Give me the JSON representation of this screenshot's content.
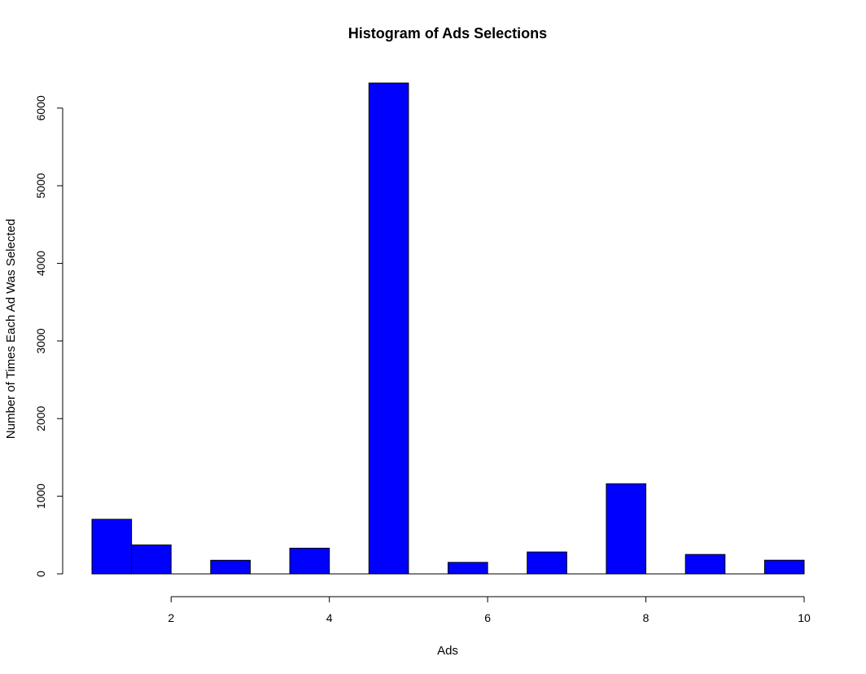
{
  "chart_data": {
    "type": "bar",
    "title": "Histogram of Ads Selections",
    "xlabel": "Ads",
    "ylabel": "Number of Times Each Ad Was Selected",
    "bar_color": "#0000ff",
    "bins": [
      {
        "x0": 1.0,
        "x1": 1.5,
        "value": 703
      },
      {
        "x0": 1.5,
        "x1": 2.0,
        "value": 373
      },
      {
        "x0": 2.0,
        "x1": 2.5,
        "value": 0
      },
      {
        "x0": 2.5,
        "x1": 3.0,
        "value": 175
      },
      {
        "x0": 3.0,
        "x1": 3.5,
        "value": 0
      },
      {
        "x0": 3.5,
        "x1": 4.0,
        "value": 331
      },
      {
        "x0": 4.0,
        "x1": 4.5,
        "value": 0
      },
      {
        "x0": 4.5,
        "x1": 5.0,
        "value": 6323
      },
      {
        "x0": 5.0,
        "x1": 5.5,
        "value": 0
      },
      {
        "x0": 5.5,
        "x1": 6.0,
        "value": 148
      },
      {
        "x0": 6.0,
        "x1": 6.5,
        "value": 0
      },
      {
        "x0": 6.5,
        "x1": 7.0,
        "value": 282
      },
      {
        "x0": 7.0,
        "x1": 7.5,
        "value": 0
      },
      {
        "x0": 7.5,
        "x1": 8.0,
        "value": 1161
      },
      {
        "x0": 8.0,
        "x1": 8.5,
        "value": 0
      },
      {
        "x0": 8.5,
        "x1": 9.0,
        "value": 250
      },
      {
        "x0": 9.0,
        "x1": 9.5,
        "value": 0
      },
      {
        "x0": 9.5,
        "x1": 10.0,
        "value": 176
      }
    ],
    "xlim": [
      1,
      10
    ],
    "ylim": [
      0,
      6323
    ],
    "x_ticks": [
      2,
      4,
      6,
      8,
      10
    ],
    "y_ticks": [
      0,
      1000,
      2000,
      3000,
      4000,
      5000,
      6000
    ],
    "grid": false,
    "legend": "none"
  }
}
